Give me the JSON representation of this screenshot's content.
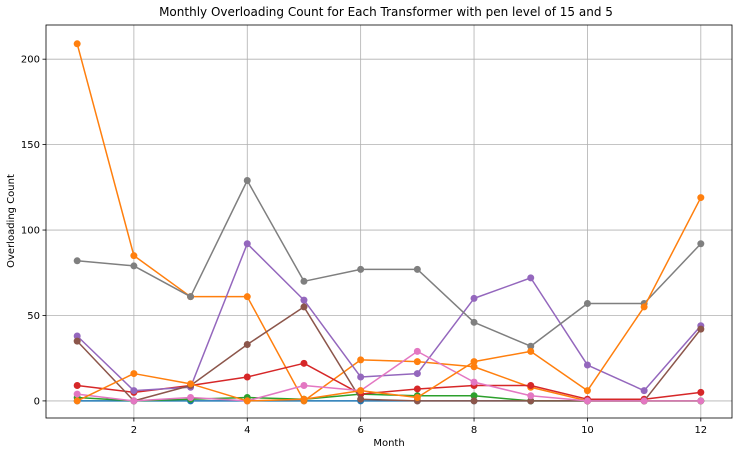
{
  "chart_data": {
    "type": "line",
    "title": "Monthly Overloading Count for Each Transformer with pen level of 15 and 5",
    "xlabel": "Month",
    "ylabel": "Overloading Count",
    "xlim": [
      0.45,
      12.55
    ],
    "ylim": [
      -10,
      220
    ],
    "x": [
      1,
      2,
      3,
      4,
      5,
      6,
      7,
      8,
      9,
      10,
      11,
      12
    ],
    "xticks": [
      2,
      4,
      6,
      8,
      10,
      12
    ],
    "yticks": [
      0,
      50,
      100,
      150,
      200
    ],
    "grid": true,
    "series": [
      {
        "color": "#1f77b4",
        "values": [
          0,
          0,
          0,
          0,
          0,
          0,
          0,
          0,
          0,
          0,
          0,
          0
        ]
      },
      {
        "color": "#ff7f0e",
        "values": [
          209,
          85,
          61,
          61,
          0,
          24,
          23,
          20,
          8,
          0,
          0,
          0
        ]
      },
      {
        "color": "#2ca02c",
        "values": [
          2,
          0,
          1,
          2,
          1,
          4,
          3,
          3,
          0,
          0,
          0,
          0
        ]
      },
      {
        "color": "#d62728",
        "values": [
          9,
          5,
          9,
          14,
          22,
          4,
          7,
          9,
          9,
          1,
          1,
          5
        ]
      },
      {
        "color": "#9467bd",
        "values": [
          38,
          6,
          8,
          92,
          59,
          14,
          16,
          60,
          72,
          21,
          6,
          44
        ]
      },
      {
        "color": "#8c564b",
        "values": [
          35,
          0,
          9,
          33,
          55,
          1,
          0,
          0,
          0,
          0,
          0,
          42
        ]
      },
      {
        "color": "#e377c2",
        "values": [
          4,
          0,
          2,
          0,
          9,
          6,
          29,
          11,
          3,
          0,
          0,
          0
        ]
      },
      {
        "color": "#7f7f7f",
        "values": [
          82,
          79,
          61,
          129,
          70,
          77,
          77,
          46,
          32,
          57,
          57,
          92
        ]
      },
      {
        "color": "#ff7f0e",
        "values": [
          0,
          16,
          10,
          0,
          1,
          6,
          2,
          23,
          29,
          6,
          55,
          119
        ]
      }
    ]
  }
}
